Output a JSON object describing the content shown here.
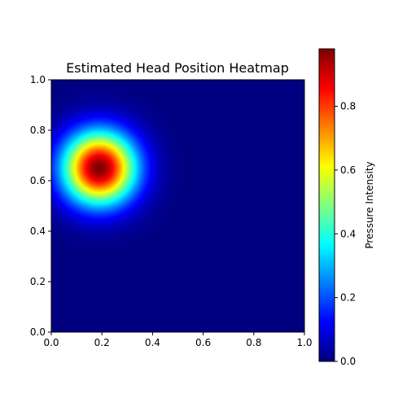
{
  "chart_data": {
    "type": "heatmap",
    "title": "Estimated Head Position Heatmap",
    "xlabel": "",
    "ylabel": "",
    "xlim": [
      0,
      1
    ],
    "ylim": [
      0,
      1
    ],
    "x_ticks": [
      "0.0",
      "0.2",
      "0.4",
      "0.6",
      "0.8",
      "1.0"
    ],
    "y_ticks": [
      "0.0",
      "0.2",
      "0.4",
      "0.6",
      "0.8",
      "1.0"
    ],
    "colormap": "jet",
    "colorbar": {
      "label": "Pressure Intensity",
      "range": [
        0,
        0.98
      ],
      "ticks": [
        "0.0",
        "0.2",
        "0.4",
        "0.6",
        "0.8"
      ]
    },
    "hotspot": {
      "x": 0.19,
      "y": 0.65,
      "peak": 0.98,
      "sigma": 0.1
    },
    "grid": false
  }
}
